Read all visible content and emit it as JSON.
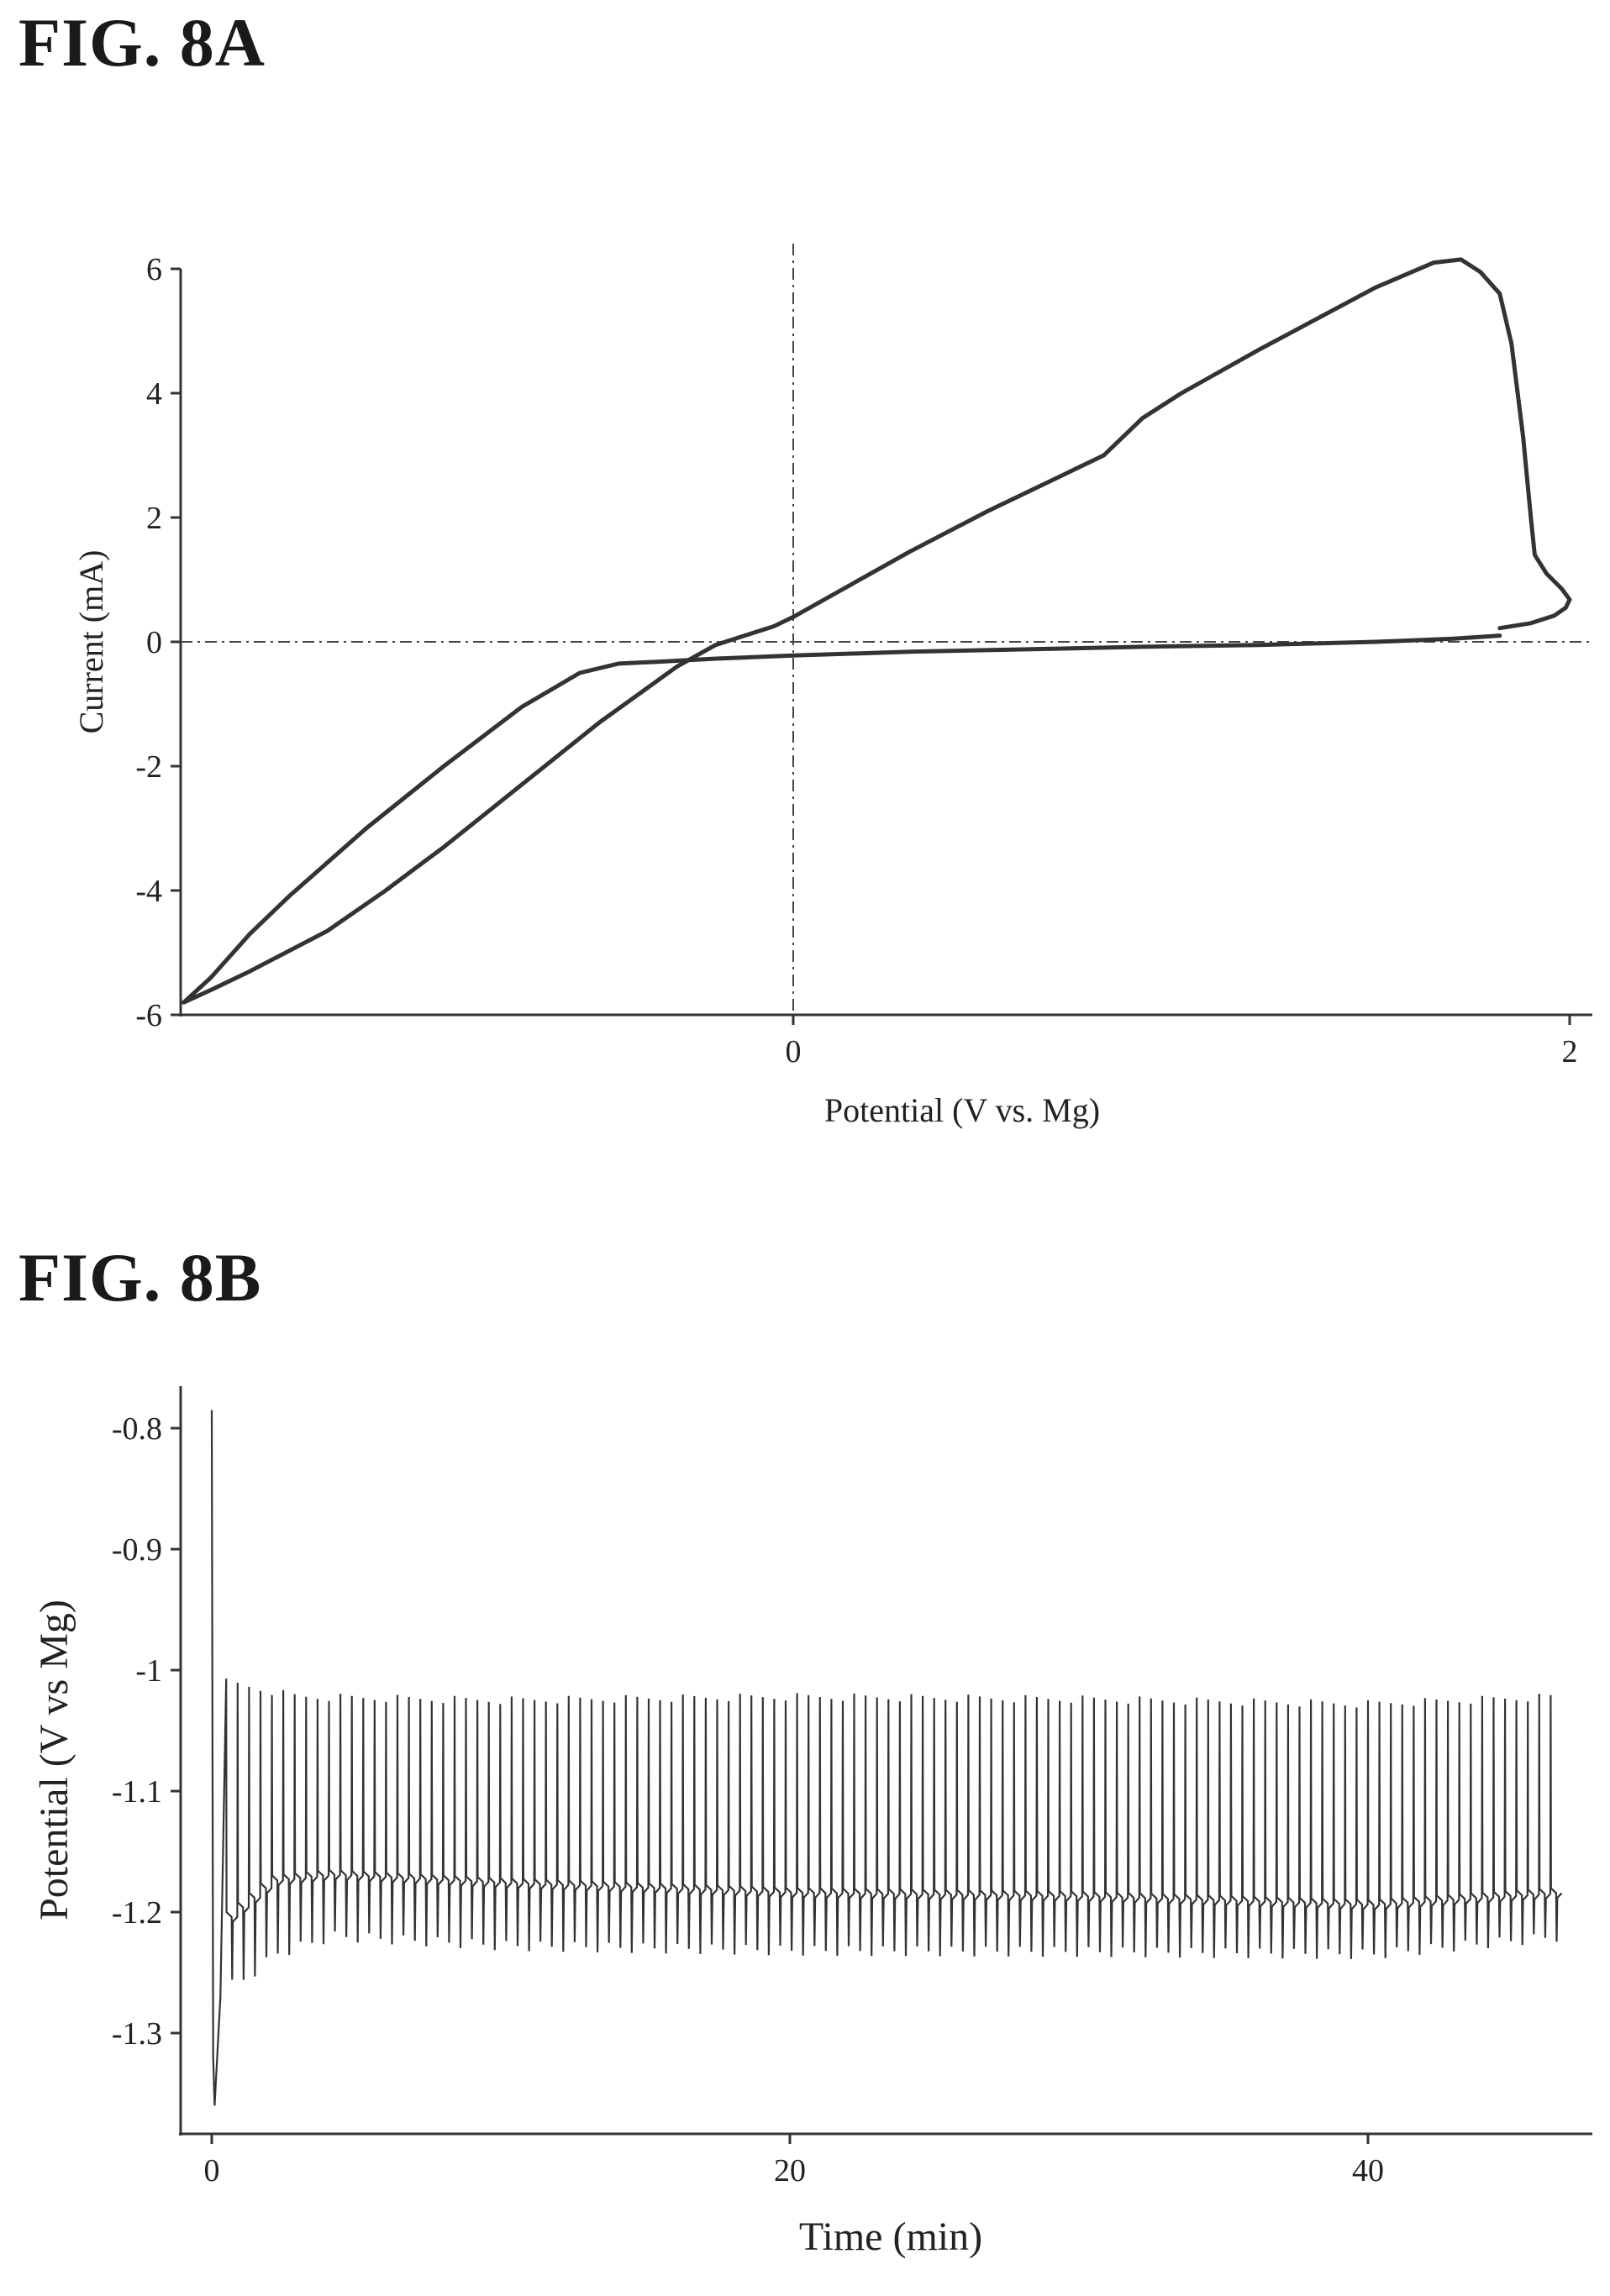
{
  "figure_a": {
    "label": "FIG. 8A"
  },
  "figure_b": {
    "label": "FIG.  8B"
  },
  "chart_data": [
    {
      "type": "line",
      "xlabel": "Potential (V vs. Mg)",
      "ylabel": "Current (mA)",
      "xlim": [
        -1.6,
        2.05
      ],
      "ylim": [
        -6,
        6
      ],
      "xticks": [
        "0",
        "2"
      ],
      "xtick_values": [
        0,
        2
      ],
      "yticks": [
        "6",
        "4",
        "2",
        "0",
        "-2",
        "-4",
        "-6"
      ],
      "ytick_values": [
        6,
        4,
        2,
        0,
        -2,
        -4,
        -6
      ],
      "reference_lines": {
        "x": 0,
        "y": 0,
        "style": "dash-dot"
      },
      "grid": false,
      "legend": "none",
      "series": [
        {
          "x": [
            1.82,
            1.9,
            1.96,
            1.99,
            2.0,
            1.98,
            1.94,
            1.91,
            1.9,
            1.88,
            1.85,
            1.82,
            1.77,
            1.72,
            1.65,
            1.5,
            1.35,
            1.2,
            1.0,
            0.9,
            0.8,
            0.7,
            0.5,
            0.3,
            0.1,
            0.0,
            -0.05,
            -0.1,
            -0.2,
            -0.3,
            -0.5,
            -0.7,
            -0.9,
            -1.05,
            -1.2,
            -1.4,
            -1.5,
            -1.57
          ],
          "y": [
            0.22,
            0.3,
            0.42,
            0.55,
            0.68,
            0.85,
            1.1,
            1.4,
            2.0,
            3.3,
            4.8,
            5.6,
            5.95,
            6.15,
            6.1,
            5.7,
            5.2,
            4.7,
            4.0,
            3.6,
            3.0,
            2.7,
            2.1,
            1.45,
            0.75,
            0.4,
            0.25,
            0.15,
            -0.05,
            -0.4,
            -1.3,
            -2.3,
            -3.3,
            -4.0,
            -4.65,
            -5.3,
            -5.6,
            -5.8
          ]
        },
        {
          "x": [
            -1.57,
            -1.5,
            -1.4,
            -1.3,
            -1.1,
            -0.9,
            -0.7,
            -0.55,
            -0.45,
            -0.35,
            -0.2,
            0.0,
            0.3,
            0.6,
            0.9,
            1.2,
            1.5,
            1.7,
            1.82
          ],
          "y": [
            -5.8,
            -5.4,
            -4.7,
            -4.1,
            -3.0,
            -2.0,
            -1.05,
            -0.5,
            -0.35,
            -0.32,
            -0.27,
            -0.22,
            -0.16,
            -0.12,
            -0.08,
            -0.05,
            0.0,
            0.05,
            0.1
          ]
        }
      ]
    },
    {
      "type": "line",
      "xlabel": "Time (min)",
      "ylabel": "Potential (V vs Mg)",
      "xlim": [
        -1,
        47.5
      ],
      "ylim": [
        -1.36,
        -0.78
      ],
      "xticks": [
        "0",
        "20",
        "40"
      ],
      "xtick_values": [
        0,
        20,
        40
      ],
      "yticks": [
        "-0.8",
        "-0.9",
        "-1",
        "-1.1",
        "-1.2",
        "-1.3"
      ],
      "ytick_values": [
        -0.8,
        -0.9,
        -1.0,
        -1.1,
        -1.2,
        -1.3
      ],
      "grid": false,
      "legend": "none",
      "series": [
        {
          "initial_spike": {
            "t": [
              0.0,
              0.05,
              0.1,
              0.3
            ],
            "v": [
              -0.785,
              -1.32,
              -1.36,
              -1.27
            ]
          },
          "cycle_period_min": 0.395,
          "t_end": 46.5,
          "upper_envelope": {
            "t": [
              0.5,
              3,
              10,
              20,
              30,
              40,
              46.5
            ],
            "v": [
              -1.01,
              -1.022,
              -1.025,
              -1.022,
              -1.024,
              -1.028,
              -1.022
            ]
          },
          "plateau_envelope": {
            "t": [
              0.5,
              2,
              4,
              10,
              20,
              30,
              40,
              46.5
            ],
            "v": [
              -1.2,
              -1.17,
              -1.165,
              -1.172,
              -1.18,
              -1.183,
              -1.19,
              -1.18
            ]
          },
          "lower_envelope": {
            "t": [
              0.5,
              1,
              2,
              4,
              10,
              20,
              30,
              40,
              46.5
            ],
            "v": [
              -1.26,
              -1.255,
              -1.235,
              -1.22,
              -1.228,
              -1.232,
              -1.233,
              -1.235,
              -1.22
            ]
          }
        }
      ]
    }
  ]
}
